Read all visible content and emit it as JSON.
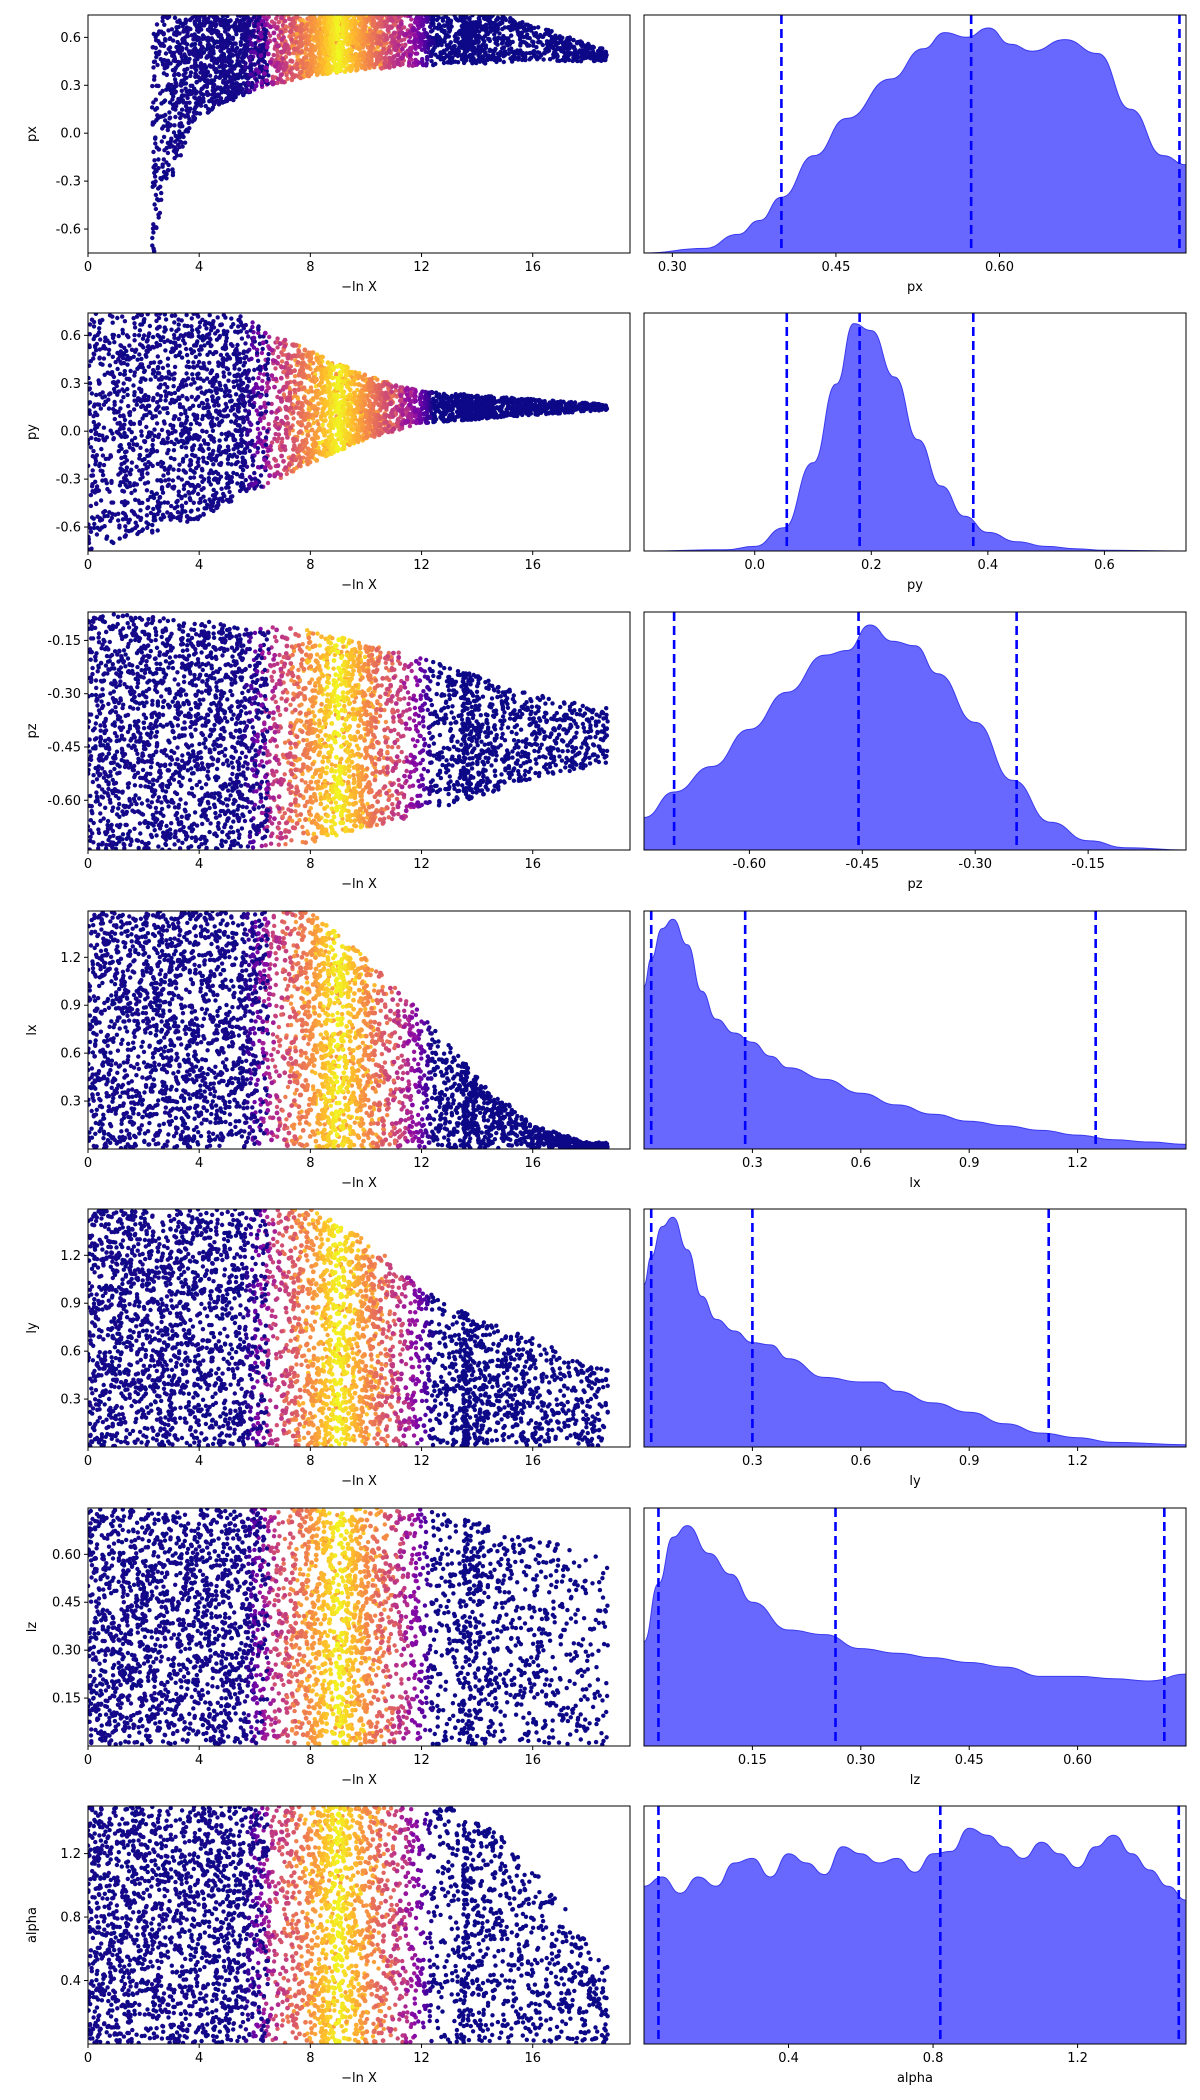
{
  "chart_data": [
    {
      "type": "scatter",
      "panel": "trace",
      "xlabel": "−ln X",
      "ylabel": "px",
      "xlim": [
        0,
        19.5
      ],
      "ylim": [
        -0.75,
        0.74
      ],
      "xticks": [
        "0",
        "4",
        "8",
        "12",
        "16"
      ],
      "yticks": [
        "-0.6",
        "-0.3",
        "0.0",
        "0.3",
        "0.6"
      ],
      "colormap": "plasma",
      "color_peak_x": 9,
      "envelope": {
        "kind": "funnel",
        "lo_edge": [
          -0.75,
          -0.5,
          0.08,
          0.27,
          0.36,
          0.4,
          0.43,
          0.45
        ],
        "lo_x": [
          2.4,
          2.6,
          3.8,
          6,
          8,
          10,
          13,
          17
        ],
        "hi": 0.74,
        "tail_end": 19,
        "tail_center": 0.5
      }
    },
    {
      "type": "area",
      "panel": "posterior",
      "xlabel": "px",
      "xlim": [
        0.274,
        0.771
      ],
      "xticks": [
        "0.30",
        "0.45",
        "0.60"
      ],
      "quantile_lines": [
        0.4,
        0.574,
        0.765
      ],
      "curve_x": [
        0.274,
        0.33,
        0.36,
        0.38,
        0.4,
        0.43,
        0.46,
        0.5,
        0.53,
        0.55,
        0.57,
        0.59,
        0.61,
        0.63,
        0.66,
        0.69,
        0.72,
        0.75,
        0.771
      ],
      "curve_y": [
        0.0,
        0.02,
        0.08,
        0.14,
        0.24,
        0.42,
        0.58,
        0.75,
        0.88,
        0.95,
        0.93,
        0.97,
        0.9,
        0.87,
        0.92,
        0.86,
        0.62,
        0.42,
        0.38
      ]
    },
    {
      "type": "scatter",
      "panel": "trace",
      "xlabel": "−ln X",
      "ylabel": "py",
      "xlim": [
        0,
        19.5
      ],
      "ylim": [
        -0.75,
        0.74
      ],
      "xticks": [
        "0",
        "4",
        "8",
        "12",
        "16"
      ],
      "yticks": [
        "-0.6",
        "-0.3",
        "0.0",
        "0.3",
        "0.6"
      ],
      "colormap": "plasma",
      "color_peak_x": 9,
      "envelope": {
        "kind": "cone",
        "center": 0.15,
        "half_width_at_x": [
          [
            0,
            0.9
          ],
          [
            4,
            0.7
          ],
          [
            8,
            0.35
          ],
          [
            10,
            0.2
          ],
          [
            12,
            0.1
          ],
          [
            16,
            0.05
          ],
          [
            18.5,
            0.02
          ]
        ]
      }
    },
    {
      "type": "area",
      "panel": "posterior",
      "xlabel": "py",
      "xlim": [
        -0.19,
        0.74
      ],
      "xticks": [
        "0.0",
        "0.2",
        "0.4",
        "0.6"
      ],
      "quantile_lines": [
        0.055,
        0.18,
        0.375
      ],
      "curve_x": [
        -0.19,
        -0.05,
        0.0,
        0.05,
        0.1,
        0.14,
        0.17,
        0.2,
        0.24,
        0.28,
        0.32,
        0.36,
        0.4,
        0.45,
        0.5,
        0.55,
        0.6,
        0.74
      ],
      "curve_y": [
        0.0,
        0.005,
        0.02,
        0.1,
        0.38,
        0.72,
        0.98,
        0.95,
        0.75,
        0.48,
        0.28,
        0.15,
        0.08,
        0.04,
        0.02,
        0.01,
        0.003,
        0.0
      ]
    },
    {
      "type": "scatter",
      "panel": "trace",
      "xlabel": "−ln X",
      "ylabel": "pz",
      "xlim": [
        0,
        19.5
      ],
      "ylim": [
        -0.74,
        -0.07
      ],
      "xticks": [
        "0",
        "4",
        "8",
        "12",
        "16"
      ],
      "yticks": [
        "-0.15",
        "-0.30",
        "-0.45",
        "-0.60"
      ],
      "colormap": "plasma",
      "color_peak_x": 9,
      "envelope": {
        "kind": "cone",
        "center": -0.42,
        "half_width_at_x": [
          [
            0,
            0.35
          ],
          [
            8,
            0.3
          ],
          [
            12,
            0.22
          ],
          [
            16,
            0.12
          ],
          [
            18.5,
            0.08
          ]
        ]
      }
    },
    {
      "type": "area",
      "panel": "posterior",
      "xlabel": "pz",
      "xlim": [
        -0.74,
        -0.02
      ],
      "xticks": [
        "-0.60",
        "-0.45",
        "-0.30",
        "-0.15"
      ],
      "quantile_lines": [
        -0.7,
        -0.455,
        -0.245
      ],
      "curve_x": [
        -0.74,
        -0.7,
        -0.65,
        -0.6,
        -0.55,
        -0.5,
        -0.47,
        -0.44,
        -0.41,
        -0.38,
        -0.35,
        -0.3,
        -0.25,
        -0.2,
        -0.15,
        -0.1,
        -0.02
      ],
      "curve_y": [
        0.14,
        0.25,
        0.36,
        0.52,
        0.68,
        0.84,
        0.86,
        0.97,
        0.9,
        0.88,
        0.76,
        0.55,
        0.3,
        0.12,
        0.04,
        0.01,
        0.0
      ]
    },
    {
      "type": "scatter",
      "panel": "trace",
      "xlabel": "−ln X",
      "ylabel": "lx",
      "xlim": [
        0,
        19.5
      ],
      "ylim": [
        0,
        1.49
      ],
      "xticks": [
        "0",
        "4",
        "8",
        "12",
        "16"
      ],
      "yticks": [
        "0.3",
        "0.6",
        "0.9",
        "1.2"
      ],
      "colormap": "plasma",
      "color_peak_x": 9,
      "envelope": {
        "kind": "ceiling",
        "ceiling_at_x": [
          [
            0,
            1.49
          ],
          [
            8,
            1.49
          ],
          [
            10,
            1.2
          ],
          [
            12,
            0.85
          ],
          [
            14,
            0.45
          ],
          [
            16,
            0.15
          ],
          [
            18,
            0.04
          ]
        ]
      }
    },
    {
      "type": "area",
      "panel": "posterior",
      "xlabel": "lx",
      "xlim": [
        0,
        1.5
      ],
      "xticks": [
        "0.3",
        "0.6",
        "0.9",
        "1.2"
      ],
      "quantile_lines": [
        0.02,
        0.28,
        1.25
      ],
      "curve_x": [
        0,
        0.02,
        0.05,
        0.08,
        0.12,
        0.16,
        0.2,
        0.25,
        0.3,
        0.35,
        0.4,
        0.5,
        0.6,
        0.7,
        0.8,
        0.9,
        1.0,
        1.1,
        1.2,
        1.3,
        1.4,
        1.5
      ],
      "curve_y": [
        0.7,
        0.82,
        0.95,
        0.99,
        0.88,
        0.68,
        0.56,
        0.5,
        0.46,
        0.4,
        0.35,
        0.3,
        0.24,
        0.19,
        0.15,
        0.12,
        0.1,
        0.08,
        0.06,
        0.04,
        0.03,
        0.02
      ]
    },
    {
      "type": "scatter",
      "panel": "trace",
      "xlabel": "−ln X",
      "ylabel": "ly",
      "xlim": [
        0,
        19.5
      ],
      "ylim": [
        0,
        1.49
      ],
      "xticks": [
        "0",
        "4",
        "8",
        "12",
        "16"
      ],
      "yticks": [
        "0.3",
        "0.6",
        "0.9",
        "1.2"
      ],
      "colormap": "plasma",
      "color_peak_x": 9,
      "envelope": {
        "kind": "ceiling",
        "ceiling_at_x": [
          [
            0,
            1.49
          ],
          [
            8,
            1.49
          ],
          [
            10,
            1.3
          ],
          [
            12,
            1.0
          ],
          [
            14,
            0.8
          ],
          [
            16,
            0.7
          ],
          [
            18,
            0.5
          ]
        ]
      }
    },
    {
      "type": "area",
      "panel": "posterior",
      "xlabel": "ly",
      "xlim": [
        0,
        1.5
      ],
      "xticks": [
        "0.3",
        "0.6",
        "0.9",
        "1.2"
      ],
      "quantile_lines": [
        0.02,
        0.3,
        1.12
      ],
      "curve_x": [
        0,
        0.02,
        0.05,
        0.08,
        0.12,
        0.16,
        0.2,
        0.25,
        0.3,
        0.35,
        0.4,
        0.5,
        0.6,
        0.65,
        0.7,
        0.8,
        0.9,
        1.0,
        1.1,
        1.2,
        1.3,
        1.5
      ],
      "curve_y": [
        0.7,
        0.82,
        0.95,
        0.99,
        0.85,
        0.65,
        0.55,
        0.5,
        0.45,
        0.44,
        0.38,
        0.3,
        0.28,
        0.28,
        0.24,
        0.19,
        0.15,
        0.1,
        0.06,
        0.04,
        0.02,
        0.01
      ]
    },
    {
      "type": "scatter",
      "panel": "trace",
      "xlabel": "−ln X",
      "ylabel": "lz",
      "xlim": [
        0,
        19.5
      ],
      "ylim": [
        0,
        0.745
      ],
      "xticks": [
        "0",
        "4",
        "8",
        "12",
        "16"
      ],
      "yticks": [
        "0.15",
        "0.30",
        "0.45",
        "0.60"
      ],
      "colormap": "plasma",
      "color_peak_x": 9,
      "envelope": {
        "kind": "ceiling",
        "ceiling_at_x": [
          [
            0,
            0.745
          ],
          [
            12,
            0.745
          ],
          [
            14,
            0.7
          ],
          [
            16,
            0.65
          ],
          [
            18.5,
            0.6
          ]
        ]
      }
    },
    {
      "type": "area",
      "panel": "posterior",
      "xlabel": "lz",
      "xlim": [
        0,
        0.75
      ],
      "xticks": [
        "0.15",
        "0.30",
        "0.45",
        "0.60"
      ],
      "quantile_lines": [
        0.02,
        0.265,
        0.72
      ],
      "curve_x": [
        0,
        0.02,
        0.04,
        0.06,
        0.09,
        0.12,
        0.15,
        0.2,
        0.25,
        0.3,
        0.35,
        0.4,
        0.45,
        0.5,
        0.55,
        0.6,
        0.65,
        0.7,
        0.75
      ],
      "curve_y": [
        0.45,
        0.7,
        0.9,
        0.95,
        0.83,
        0.74,
        0.62,
        0.5,
        0.48,
        0.42,
        0.4,
        0.38,
        0.36,
        0.34,
        0.3,
        0.3,
        0.29,
        0.28,
        0.31
      ]
    },
    {
      "type": "scatter",
      "panel": "trace",
      "xlabel": "−ln X",
      "ylabel": "alpha",
      "xlim": [
        0,
        19.5
      ],
      "ylim": [
        0,
        1.5
      ],
      "xticks": [
        "0",
        "4",
        "8",
        "12",
        "16"
      ],
      "yticks": [
        "0.4",
        "0.8",
        "1.2"
      ],
      "colormap": "plasma",
      "color_peak_x": 9,
      "envelope": {
        "kind": "ceiling",
        "ceiling_at_x": [
          [
            0,
            1.5
          ],
          [
            13,
            1.5
          ],
          [
            15,
            1.3
          ],
          [
            17,
            0.9
          ],
          [
            18.5,
            0.5
          ]
        ]
      }
    },
    {
      "type": "area",
      "panel": "posterior",
      "xlabel": "alpha",
      "xlim": [
        0,
        1.5
      ],
      "xticks": [
        "0.4",
        "0.8",
        "1.2"
      ],
      "quantile_lines": [
        0.04,
        0.82,
        1.48
      ],
      "curve_x": [
        0,
        0.05,
        0.1,
        0.15,
        0.2,
        0.25,
        0.3,
        0.35,
        0.4,
        0.45,
        0.5,
        0.55,
        0.6,
        0.65,
        0.7,
        0.75,
        0.8,
        0.85,
        0.9,
        0.95,
        1.0,
        1.05,
        1.1,
        1.15,
        1.2,
        1.25,
        1.3,
        1.35,
        1.4,
        1.45,
        1.5
      ],
      "curve_y": [
        0.68,
        0.72,
        0.65,
        0.72,
        0.68,
        0.78,
        0.8,
        0.72,
        0.82,
        0.78,
        0.73,
        0.85,
        0.82,
        0.78,
        0.8,
        0.74,
        0.82,
        0.83,
        0.93,
        0.9,
        0.85,
        0.8,
        0.87,
        0.82,
        0.76,
        0.85,
        0.9,
        0.82,
        0.75,
        0.68,
        0.62
      ]
    }
  ]
}
